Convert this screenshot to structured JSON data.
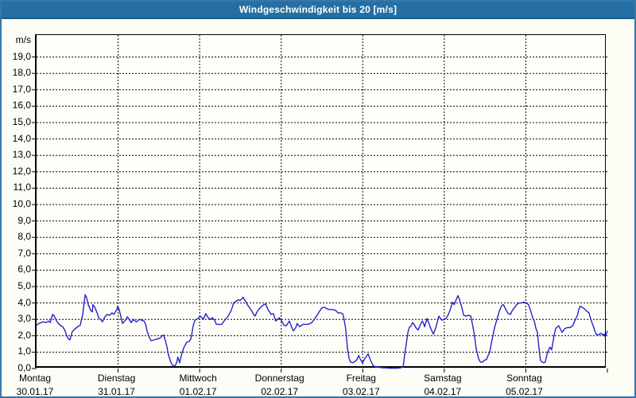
{
  "window": {
    "title": "Windgeschwindigkeit bis 20 [m/s]"
  },
  "colors": {
    "titlebar_bg": "#2470a4",
    "titlebar_border": "#1b5b87",
    "frame_border": "#3a76a8",
    "line": "#2323cb",
    "grid": "#000000",
    "text": "#000000",
    "plot_bg": "#fffffa"
  },
  "chart_data": {
    "type": "line",
    "title": "Windgeschwindigkeit bis 20 [m/s]",
    "ylabel": "m/s",
    "ylim": [
      0,
      20.34
    ],
    "grid": "dashed",
    "legend": "none",
    "y_ticks": [
      {
        "value": 19,
        "label": "19,0"
      },
      {
        "value": 18,
        "label": "18,0"
      },
      {
        "value": 17,
        "label": "17,0"
      },
      {
        "value": 16,
        "label": "16,0"
      },
      {
        "value": 15,
        "label": "15,0"
      },
      {
        "value": 14,
        "label": "14,0"
      },
      {
        "value": 13,
        "label": "13,0"
      },
      {
        "value": 12,
        "label": "12,0"
      },
      {
        "value": 11,
        "label": "11,0"
      },
      {
        "value": 10,
        "label": "10,0"
      },
      {
        "value": 9,
        "label": "9,0"
      },
      {
        "value": 8,
        "label": "8,0"
      },
      {
        "value": 7,
        "label": "7,0"
      },
      {
        "value": 6,
        "label": "6,0"
      },
      {
        "value": 5,
        "label": "5,0"
      },
      {
        "value": 4,
        "label": "4,0"
      },
      {
        "value": 3,
        "label": "3,0"
      },
      {
        "value": 2,
        "label": "2,0"
      },
      {
        "value": 1,
        "label": "1,0"
      },
      {
        "value": 0,
        "label": "0,0"
      }
    ],
    "x_axis": {
      "unit": "hours since Monday 00:00",
      "range": [
        0,
        168
      ],
      "day_ticks": [
        {
          "hour": 0,
          "day": "Montag",
          "date": "30.01.17"
        },
        {
          "hour": 24,
          "day": "Dienstag",
          "date": "31.01.17"
        },
        {
          "hour": 48,
          "day": "Mittwoch",
          "date": "01.02.17"
        },
        {
          "hour": 72,
          "day": "Donnerstag",
          "date": "02.02.17"
        },
        {
          "hour": 96,
          "day": "Freitag",
          "date": "03.02.17"
        },
        {
          "hour": 120,
          "day": "Samstag",
          "date": "04.02.17"
        },
        {
          "hour": 144,
          "day": "Sonntag",
          "date": "05.02.17"
        }
      ]
    },
    "series": [
      {
        "name": "Windgeschwindigkeit [m/s]",
        "color": "#2323cb",
        "points": [
          [
            0,
            2.65
          ],
          [
            0.7,
            2.75
          ],
          [
            1.9,
            2.85
          ],
          [
            2.8,
            2.8
          ],
          [
            3.5,
            2.9
          ],
          [
            4,
            2.8
          ],
          [
            4.7,
            3.3
          ],
          [
            5.1,
            3.25
          ],
          [
            5.9,
            2.9
          ],
          [
            6.6,
            2.7
          ],
          [
            7.7,
            2.55
          ],
          [
            8.4,
            2.3
          ],
          [
            8.9,
            2.0
          ],
          [
            9.4,
            1.8
          ],
          [
            9.8,
            1.75
          ],
          [
            10.5,
            2.25
          ],
          [
            11.2,
            2.4
          ],
          [
            12.4,
            2.6
          ],
          [
            12.9,
            2.65
          ],
          [
            13.1,
            2.9
          ],
          [
            13.6,
            3.3
          ],
          [
            13.8,
            3.7
          ],
          [
            14.3,
            4.5
          ],
          [
            14.7,
            4.35
          ],
          [
            15.2,
            3.9
          ],
          [
            15.9,
            3.55
          ],
          [
            16.4,
            3.45
          ],
          [
            16.6,
            3.9
          ],
          [
            17.1,
            3.75
          ],
          [
            17.8,
            3.4
          ],
          [
            18.3,
            3.1
          ],
          [
            19,
            2.95
          ],
          [
            19.4,
            2.85
          ],
          [
            20.1,
            3.15
          ],
          [
            20.8,
            3.3
          ],
          [
            21.5,
            3.25
          ],
          [
            22.2,
            3.4
          ],
          [
            22.7,
            3.3
          ],
          [
            23.2,
            3.45
          ],
          [
            23.6,
            3.6
          ],
          [
            23.9,
            3.8
          ],
          [
            24.3,
            3.6
          ],
          [
            25.3,
            2.75
          ],
          [
            26,
            2.9
          ],
          [
            26.7,
            3.15
          ],
          [
            27.4,
            2.95
          ],
          [
            27.8,
            2.8
          ],
          [
            28.5,
            3.0
          ],
          [
            29,
            2.9
          ],
          [
            29.5,
            2.85
          ],
          [
            30.2,
            3.0
          ],
          [
            30.9,
            2.95
          ],
          [
            31.6,
            2.9
          ],
          [
            32.1,
            2.7
          ],
          [
            32.5,
            2.3
          ],
          [
            33.2,
            1.9
          ],
          [
            33.7,
            1.7
          ],
          [
            34.6,
            1.75
          ],
          [
            35.3,
            1.8
          ],
          [
            36.3,
            1.85
          ],
          [
            37,
            2.0
          ],
          [
            37.4,
            2.05
          ],
          [
            37.9,
            1.7
          ],
          [
            38.4,
            1.3
          ],
          [
            38.8,
            0.85
          ],
          [
            39.5,
            0.4
          ],
          [
            40,
            0.2
          ],
          [
            40.7,
            0.15
          ],
          [
            41.2,
            0.35
          ],
          [
            41.6,
            0.7
          ],
          [
            42.1,
            0.35
          ],
          [
            42.8,
            0.95
          ],
          [
            43.5,
            1.35
          ],
          [
            44.2,
            1.6
          ],
          [
            44.9,
            1.65
          ],
          [
            45.4,
            1.8
          ],
          [
            45.6,
            2.0
          ],
          [
            46.1,
            2.6
          ],
          [
            46.6,
            2.95
          ],
          [
            47,
            3.0
          ],
          [
            47.5,
            3.05
          ],
          [
            48.2,
            3.2
          ],
          [
            48.7,
            3.1
          ],
          [
            49.1,
            3.0
          ],
          [
            49.8,
            3.35
          ],
          [
            50.5,
            3.1
          ],
          [
            51.2,
            3.0
          ],
          [
            51.7,
            3.1
          ],
          [
            52.4,
            2.95
          ],
          [
            52.9,
            2.7
          ],
          [
            53.8,
            2.7
          ],
          [
            54.5,
            2.7
          ],
          [
            55.2,
            2.9
          ],
          [
            56.4,
            3.2
          ],
          [
            57.3,
            3.55
          ],
          [
            58,
            4.0
          ],
          [
            58.7,
            4.1
          ],
          [
            59.4,
            4.2
          ],
          [
            59.9,
            4.15
          ],
          [
            60.4,
            4.25
          ],
          [
            60.8,
            4.35
          ],
          [
            61.5,
            4.1
          ],
          [
            62.2,
            3.85
          ],
          [
            63.2,
            3.55
          ],
          [
            63.9,
            3.3
          ],
          [
            64.3,
            3.2
          ],
          [
            65,
            3.5
          ],
          [
            66,
            3.75
          ],
          [
            66.9,
            3.9
          ],
          [
            67.4,
            3.95
          ],
          [
            68.1,
            3.6
          ],
          [
            68.6,
            3.45
          ],
          [
            69,
            3.3
          ],
          [
            69.7,
            3.35
          ],
          [
            70.4,
            2.9
          ],
          [
            70.9,
            3.0
          ],
          [
            71.4,
            3.1
          ],
          [
            71.8,
            3.0
          ],
          [
            72.8,
            2.65
          ],
          [
            73.5,
            2.6
          ],
          [
            74.4,
            2.9
          ],
          [
            75.1,
            2.5
          ],
          [
            75.6,
            2.3
          ],
          [
            76.3,
            2.5
          ],
          [
            76.7,
            2.75
          ],
          [
            77.4,
            2.55
          ],
          [
            78.4,
            2.7
          ],
          [
            79.1,
            2.7
          ],
          [
            80,
            2.7
          ],
          [
            81,
            2.8
          ],
          [
            81.7,
            3.0
          ],
          [
            82.4,
            3.2
          ],
          [
            83.3,
            3.5
          ],
          [
            84,
            3.7
          ],
          [
            84.7,
            3.75
          ],
          [
            85.4,
            3.65
          ],
          [
            86.1,
            3.6
          ],
          [
            87,
            3.6
          ],
          [
            88,
            3.55
          ],
          [
            88.7,
            3.4
          ],
          [
            89.4,
            3.4
          ],
          [
            90.1,
            3.35
          ],
          [
            90.5,
            3.0
          ],
          [
            91,
            2.4
          ],
          [
            91.5,
            1.2
          ],
          [
            92,
            0.6
          ],
          [
            92.4,
            0.4
          ],
          [
            93.1,
            0.35
          ],
          [
            93.8,
            0.45
          ],
          [
            94.3,
            0.55
          ],
          [
            94.8,
            0.8
          ],
          [
            95.2,
            0.6
          ],
          [
            95.9,
            0.35
          ],
          [
            96.6,
            0.6
          ],
          [
            97.6,
            0.9
          ],
          [
            98.3,
            0.5
          ],
          [
            99,
            0.2
          ],
          [
            99.7,
            0.1
          ],
          [
            100.6,
            0.1
          ],
          [
            101.5,
            0.05
          ],
          [
            102.5,
            0.05
          ],
          [
            103.7,
            0.02
          ],
          [
            104.8,
            0.02
          ],
          [
            106,
            0.02
          ],
          [
            107.2,
            0.05
          ],
          [
            107.9,
            0.1
          ],
          [
            108.3,
            0.8
          ],
          [
            108.8,
            1.5
          ],
          [
            109.3,
            2.2
          ],
          [
            109.7,
            2.5
          ],
          [
            110.2,
            2.6
          ],
          [
            110.7,
            2.8
          ],
          [
            111.1,
            2.7
          ],
          [
            111.6,
            2.5
          ],
          [
            112.3,
            2.35
          ],
          [
            112.8,
            2.6
          ],
          [
            113.5,
            2.9
          ],
          [
            114,
            2.7
          ],
          [
            114.2,
            2.55
          ],
          [
            114.9,
            3.05
          ],
          [
            115.4,
            2.8
          ],
          [
            116.1,
            2.4
          ],
          [
            116.8,
            2.1
          ],
          [
            117.5,
            2.5
          ],
          [
            117.9,
            2.8
          ],
          [
            118.4,
            3.2
          ],
          [
            118.9,
            3.05
          ],
          [
            119.3,
            2.95
          ],
          [
            120,
            3.0
          ],
          [
            120.5,
            3.05
          ],
          [
            121.2,
            3.3
          ],
          [
            121.7,
            3.55
          ],
          [
            122.4,
            4.05
          ],
          [
            122.9,
            3.9
          ],
          [
            123.6,
            4.25
          ],
          [
            124,
            4.45
          ],
          [
            124.5,
            4.2
          ],
          [
            125.2,
            3.7
          ],
          [
            125.7,
            3.25
          ],
          [
            126.4,
            3.2
          ],
          [
            127.1,
            3.25
          ],
          [
            127.8,
            3.2
          ],
          [
            128.2,
            2.8
          ],
          [
            128.9,
            2.0
          ],
          [
            129.4,
            1.2
          ],
          [
            130.1,
            0.6
          ],
          [
            130.6,
            0.4
          ],
          [
            131.3,
            0.4
          ],
          [
            131.7,
            0.5
          ],
          [
            132.4,
            0.55
          ],
          [
            132.9,
            0.8
          ],
          [
            133.4,
            1.0
          ],
          [
            133.8,
            1.5
          ],
          [
            134.3,
            2.0
          ],
          [
            134.8,
            2.5
          ],
          [
            135.5,
            3.0
          ],
          [
            136.2,
            3.5
          ],
          [
            136.9,
            3.85
          ],
          [
            137.4,
            3.9
          ],
          [
            138.1,
            3.6
          ],
          [
            138.8,
            3.35
          ],
          [
            139.5,
            3.3
          ],
          [
            139.9,
            3.5
          ],
          [
            140.6,
            3.7
          ],
          [
            141.3,
            3.9
          ],
          [
            142,
            4.0
          ],
          [
            142.7,
            4.0
          ],
          [
            143.4,
            4.05
          ],
          [
            144.1,
            4.0
          ],
          [
            144.8,
            3.9
          ],
          [
            145.3,
            3.6
          ],
          [
            146,
            3.1
          ],
          [
            146.5,
            2.9
          ],
          [
            146.9,
            2.5
          ],
          [
            147.4,
            2.2
          ],
          [
            147.9,
            1.2
          ],
          [
            148.3,
            0.5
          ],
          [
            148.8,
            0.4
          ],
          [
            149.3,
            0.35
          ],
          [
            149.7,
            0.4
          ],
          [
            150.4,
            1.0
          ],
          [
            151.1,
            1.3
          ],
          [
            151.6,
            1.15
          ],
          [
            152.3,
            2.0
          ],
          [
            152.8,
            2.45
          ],
          [
            153.3,
            2.55
          ],
          [
            153.7,
            2.6
          ],
          [
            154.2,
            2.4
          ],
          [
            154.7,
            2.2
          ],
          [
            155.1,
            2.35
          ],
          [
            155.6,
            2.45
          ],
          [
            156.3,
            2.5
          ],
          [
            157,
            2.5
          ],
          [
            157.7,
            2.6
          ],
          [
            158.2,
            2.8
          ],
          [
            158.6,
            3.0
          ],
          [
            159.1,
            3.2
          ],
          [
            159.6,
            3.6
          ],
          [
            160,
            3.8
          ],
          [
            160.5,
            3.75
          ],
          [
            161.2,
            3.65
          ],
          [
            161.9,
            3.5
          ],
          [
            162.6,
            3.4
          ],
          [
            163.1,
            3.0
          ],
          [
            163.8,
            2.6
          ],
          [
            164.3,
            2.3
          ],
          [
            164.7,
            2.1
          ],
          [
            165.2,
            2.05
          ],
          [
            165.7,
            2.1
          ],
          [
            166.2,
            2.15
          ],
          [
            166.6,
            2.05
          ],
          [
            167.1,
            2.1
          ],
          [
            167.3,
            1.95
          ],
          [
            167.5,
            2.0
          ],
          [
            168,
            2.3
          ]
        ]
      }
    ]
  }
}
